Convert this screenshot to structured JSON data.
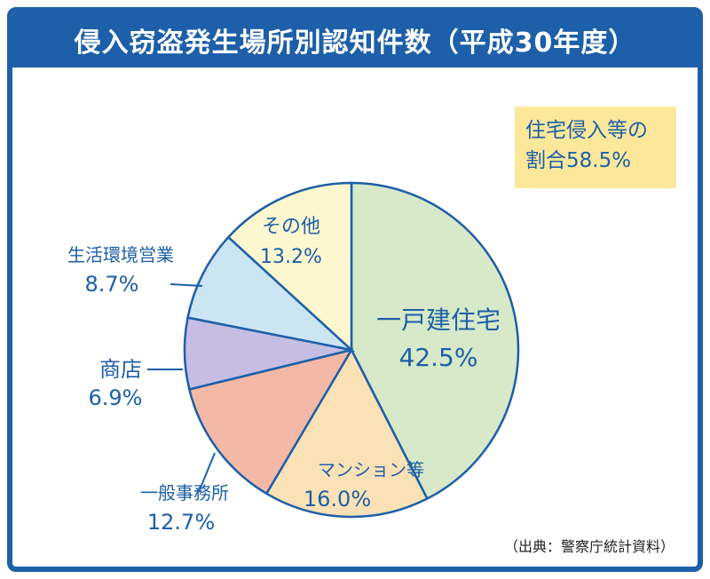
{
  "title": "侵入窃盗発生場所別認知件数（平成30年度）",
  "note": {
    "line1": "住宅侵入等の",
    "line2": "割合58.5%"
  },
  "source": "（出典：警察庁統計資料）",
  "colors": {
    "frame": "#1d5fa8",
    "label_text": "#1d5fa8",
    "slice_outline": "#1d5fa8",
    "note_bg": "#fbe89a"
  },
  "chart_data": {
    "type": "pie",
    "unit": "%",
    "slices": [
      {
        "label": "一戸建住宅",
        "value": 42.5,
        "value_text": "42.5%",
        "color": "#d7e9c8"
      },
      {
        "label": "マンション等",
        "value": 16.0,
        "value_text": "16.0%",
        "color": "#fbe1b6"
      },
      {
        "label": "一般事務所",
        "value": 12.7,
        "value_text": "12.7%",
        "color": "#f4b9a6"
      },
      {
        "label": "商店",
        "value": 6.9,
        "value_text": "6.9%",
        "color": "#c5bde3"
      },
      {
        "label": "生活環境営業",
        "value": 8.7,
        "value_text": "8.7%",
        "color": "#cce5f2"
      },
      {
        "label": "その他",
        "value": 13.2,
        "value_text": "13.2%",
        "color": "#fdf7cf"
      }
    ]
  }
}
